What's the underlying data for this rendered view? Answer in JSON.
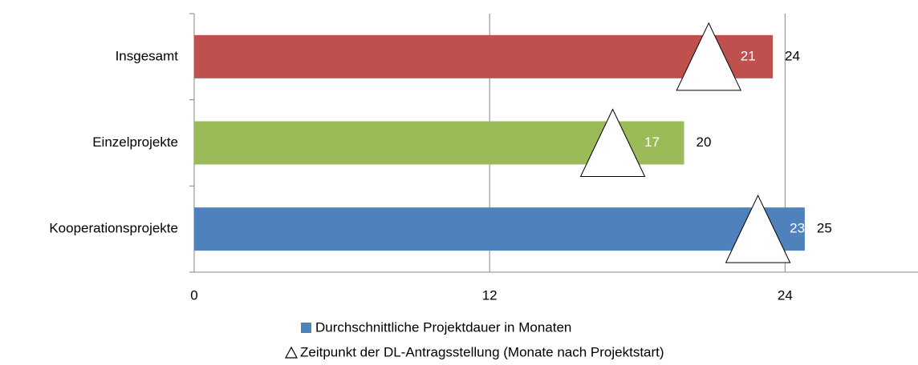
{
  "chart_data": {
    "type": "bar",
    "orientation": "horizontal",
    "categories": [
      "Insgesamt",
      "Einzelprojekte",
      "Kooperationsprojekte"
    ],
    "series": [
      {
        "name": "Durchschnittliche Projektdauer in Monaten",
        "color": "#4f81bd",
        "colors": [
          "#c0504d",
          "#9bbb59",
          "#4f81bd"
        ],
        "values": [
          23.5,
          19.9,
          24.8
        ],
        "value_labels": [
          "24",
          "20",
          "25"
        ]
      },
      {
        "name": "Zeitpunkt der DL-Antragsstellung (Monate nach Projektstart)",
        "marker": "triangle",
        "color": "#ffffff",
        "values": [
          20.9,
          17.0,
          22.9
        ],
        "value_labels": [
          "21",
          "17",
          "23"
        ]
      }
    ],
    "xlim": [
      0,
      29.4
    ],
    "xticks": [
      0,
      12,
      24
    ],
    "grid": true
  }
}
